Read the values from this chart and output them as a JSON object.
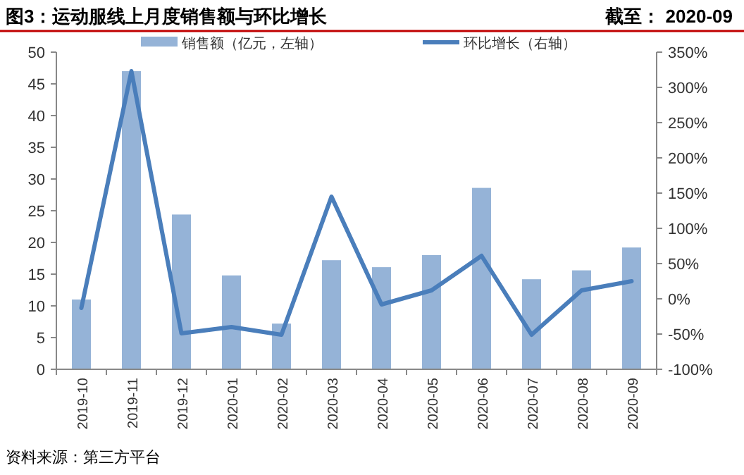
{
  "chart_data": {
    "type": "bar",
    "title": "图3：运动服线上月度销售额与环比增长",
    "subtitle": "截至： 2020-09",
    "categories": [
      "2019-10",
      "2019-11",
      "2019-12",
      "2020-01",
      "2020-02",
      "2020-03",
      "2020-04",
      "2020-05",
      "2020-06",
      "2020-07",
      "2020-08",
      "2020-09"
    ],
    "series": [
      {
        "name": "销售额（亿元，左轴）",
        "color": "#95b3d7",
        "values": [
          11,
          47,
          24.4,
          14.8,
          7.2,
          17.2,
          16.1,
          18,
          28.6,
          14.2,
          15.6,
          19.2
        ]
      },
      {
        "name": "环比增长（右轴）",
        "type": "line",
        "axis": "y2",
        "color": "#4a7ebb",
        "values": [
          -13,
          323,
          -49,
          -40,
          -51,
          145,
          -8,
          12,
          61,
          -51,
          12,
          25
        ]
      }
    ],
    "ylim": [
      0,
      50
    ],
    "yticks": [
      0,
      5,
      10,
      15,
      20,
      25,
      30,
      35,
      40,
      45,
      50
    ],
    "y2lim": [
      -100,
      350
    ],
    "y2ticks": [
      {
        "value": -100,
        "label": "-100%"
      },
      {
        "value": -50,
        "label": "-50%"
      },
      {
        "value": 0,
        "label": "0%"
      },
      {
        "value": 50,
        "label": "50%"
      },
      {
        "value": 100,
        "label": "100%"
      },
      {
        "value": 150,
        "label": "150%"
      },
      {
        "value": 200,
        "label": "200%"
      },
      {
        "value": 250,
        "label": "250%"
      },
      {
        "value": 300,
        "label": "300%"
      },
      {
        "value": 350,
        "label": "350%"
      }
    ],
    "legend": "top",
    "grid": false,
    "marker": "none",
    "line_style": "solid",
    "annotations": [
      "资料来源：第三方平台"
    ]
  }
}
